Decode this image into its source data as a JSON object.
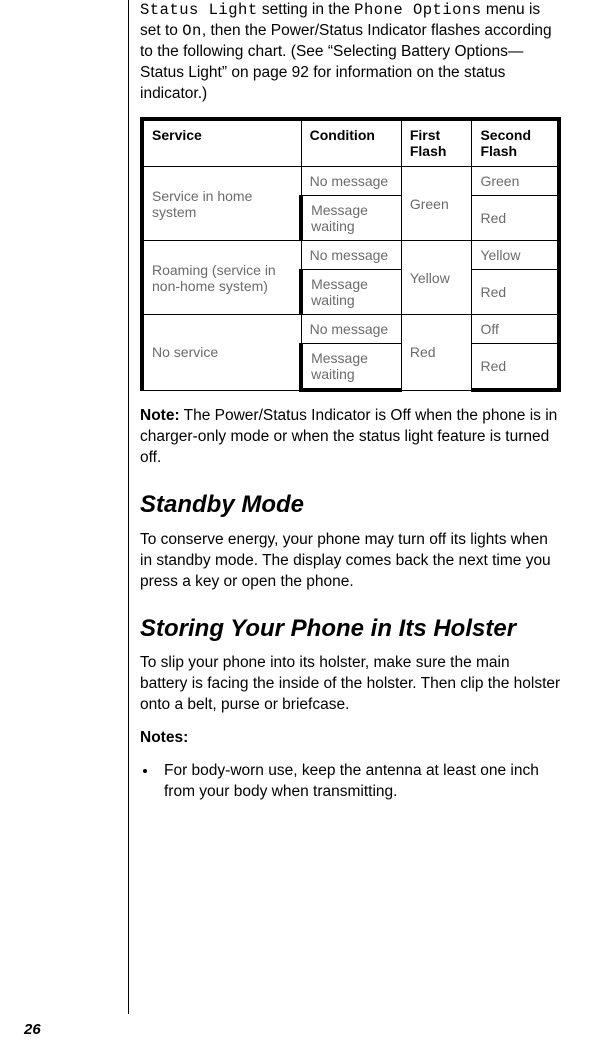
{
  "intro": {
    "pre1": "Status Light",
    "mid1": " setting in the ",
    "pre2": "Phone Options",
    "mid2": " menu is set to ",
    "pre3": "On",
    "tail": ", then the Power/Status Indicator flashes according to the following chart. (See “Selecting Battery Options—Status Light” on page 92 for information on the status indicator.)"
  },
  "table": {
    "headers": [
      "Service",
      "Condition",
      "First Flash",
      "Second Flash"
    ],
    "rows": [
      {
        "service": "Service in home system",
        "condition": "No message",
        "first": "Green",
        "second": "Green"
      },
      {
        "service": "",
        "condition": "Message waiting",
        "first": "",
        "second": "Red"
      },
      {
        "service": "Roaming (service in non-home system)",
        "condition": "No message",
        "first": "Yellow",
        "second": "Yellow"
      },
      {
        "service": "",
        "condition": "Message waiting",
        "first": "",
        "second": "Red"
      },
      {
        "service": "No service",
        "condition": "No message",
        "first": "Red",
        "second": "Off"
      },
      {
        "service": "",
        "condition": "Message waiting",
        "first": "",
        "second": "Red"
      }
    ]
  },
  "note": {
    "label": "Note:",
    "text": " The Power/Status Indicator is Off when the phone is in charger-only mode or when the status light feature is turned off."
  },
  "standby": {
    "heading": "Standby Mode",
    "body": "To conserve energy, your phone may turn off its lights when in standby mode. The display comes back the next time you press a key or open the phone."
  },
  "holster": {
    "heading": "Storing Your Phone in Its Holster",
    "body": "To slip your phone into its holster, make sure the main battery is facing the inside of the holster. Then clip the holster onto a belt, purse or briefcase.",
    "notes_label": "Notes:",
    "bullet1": "For body-worn use, keep the antenna at least one inch from your body when transmitting."
  },
  "page_number": "26"
}
